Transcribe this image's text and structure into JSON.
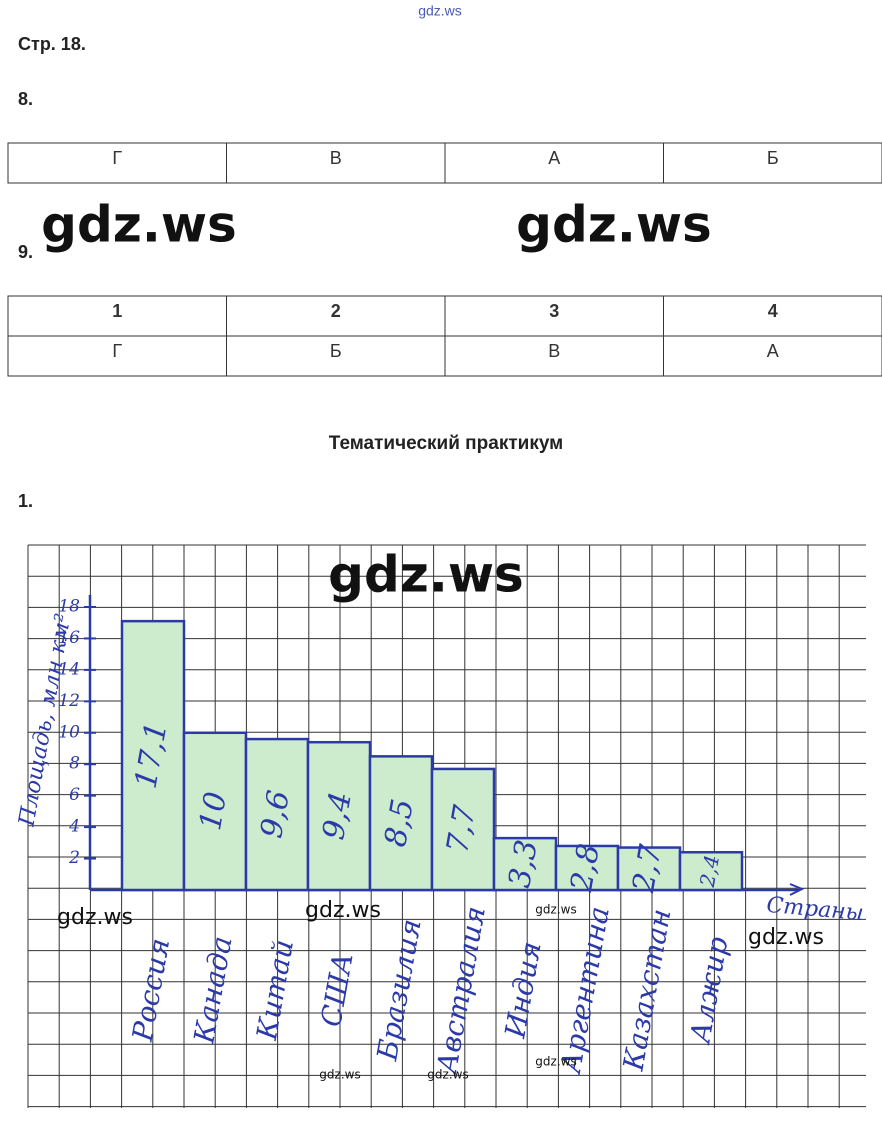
{
  "header": {
    "watermark": "gdz.ws",
    "page": "Стр. 18."
  },
  "task8": {
    "number": "8.",
    "table": {
      "rows": [
        [
          "Г",
          "В",
          "А",
          "Б"
        ]
      ]
    }
  },
  "task9": {
    "number": "9.",
    "table": {
      "rows": [
        [
          "1",
          "2",
          "3",
          "4"
        ],
        [
          "Г",
          "Б",
          "В",
          "А"
        ]
      ]
    }
  },
  "section_title": "Тематический практикум",
  "task1": {
    "number": "1."
  },
  "watermarks": [
    "gdz.ws",
    "gdz.ws",
    "gdz.ws",
    "gdz.ws",
    "gdz.ws",
    "gdz.ws",
    "gdz.ws",
    "gdz.ws",
    "gdz.ws",
    "gdz.ws"
  ],
  "chart_data": {
    "type": "bar",
    "y_label": "Площадь, млн км²",
    "x_label": "Страны",
    "categories": [
      "Россия",
      "Канада",
      "Китай",
      "США",
      "Бразилия",
      "Австралия",
      "Индия",
      "Аргентина",
      "Казахстан",
      "Алжир"
    ],
    "values": [
      17.1,
      10,
      9.6,
      9.4,
      8.5,
      7.7,
      3.3,
      2.8,
      2.7,
      2.4
    ],
    "value_labels": [
      "17,1",
      "10",
      "9,6",
      "9,4",
      "8,5",
      "7,7",
      "3,3",
      "2,8",
      "2,7",
      "2,4"
    ],
    "color": "#2b3aa8",
    "fill": "#cdeccd",
    "ylim": [
      0,
      18
    ],
    "yticks": [
      2,
      4,
      6,
      8,
      10,
      12,
      14,
      16,
      18
    ]
  }
}
